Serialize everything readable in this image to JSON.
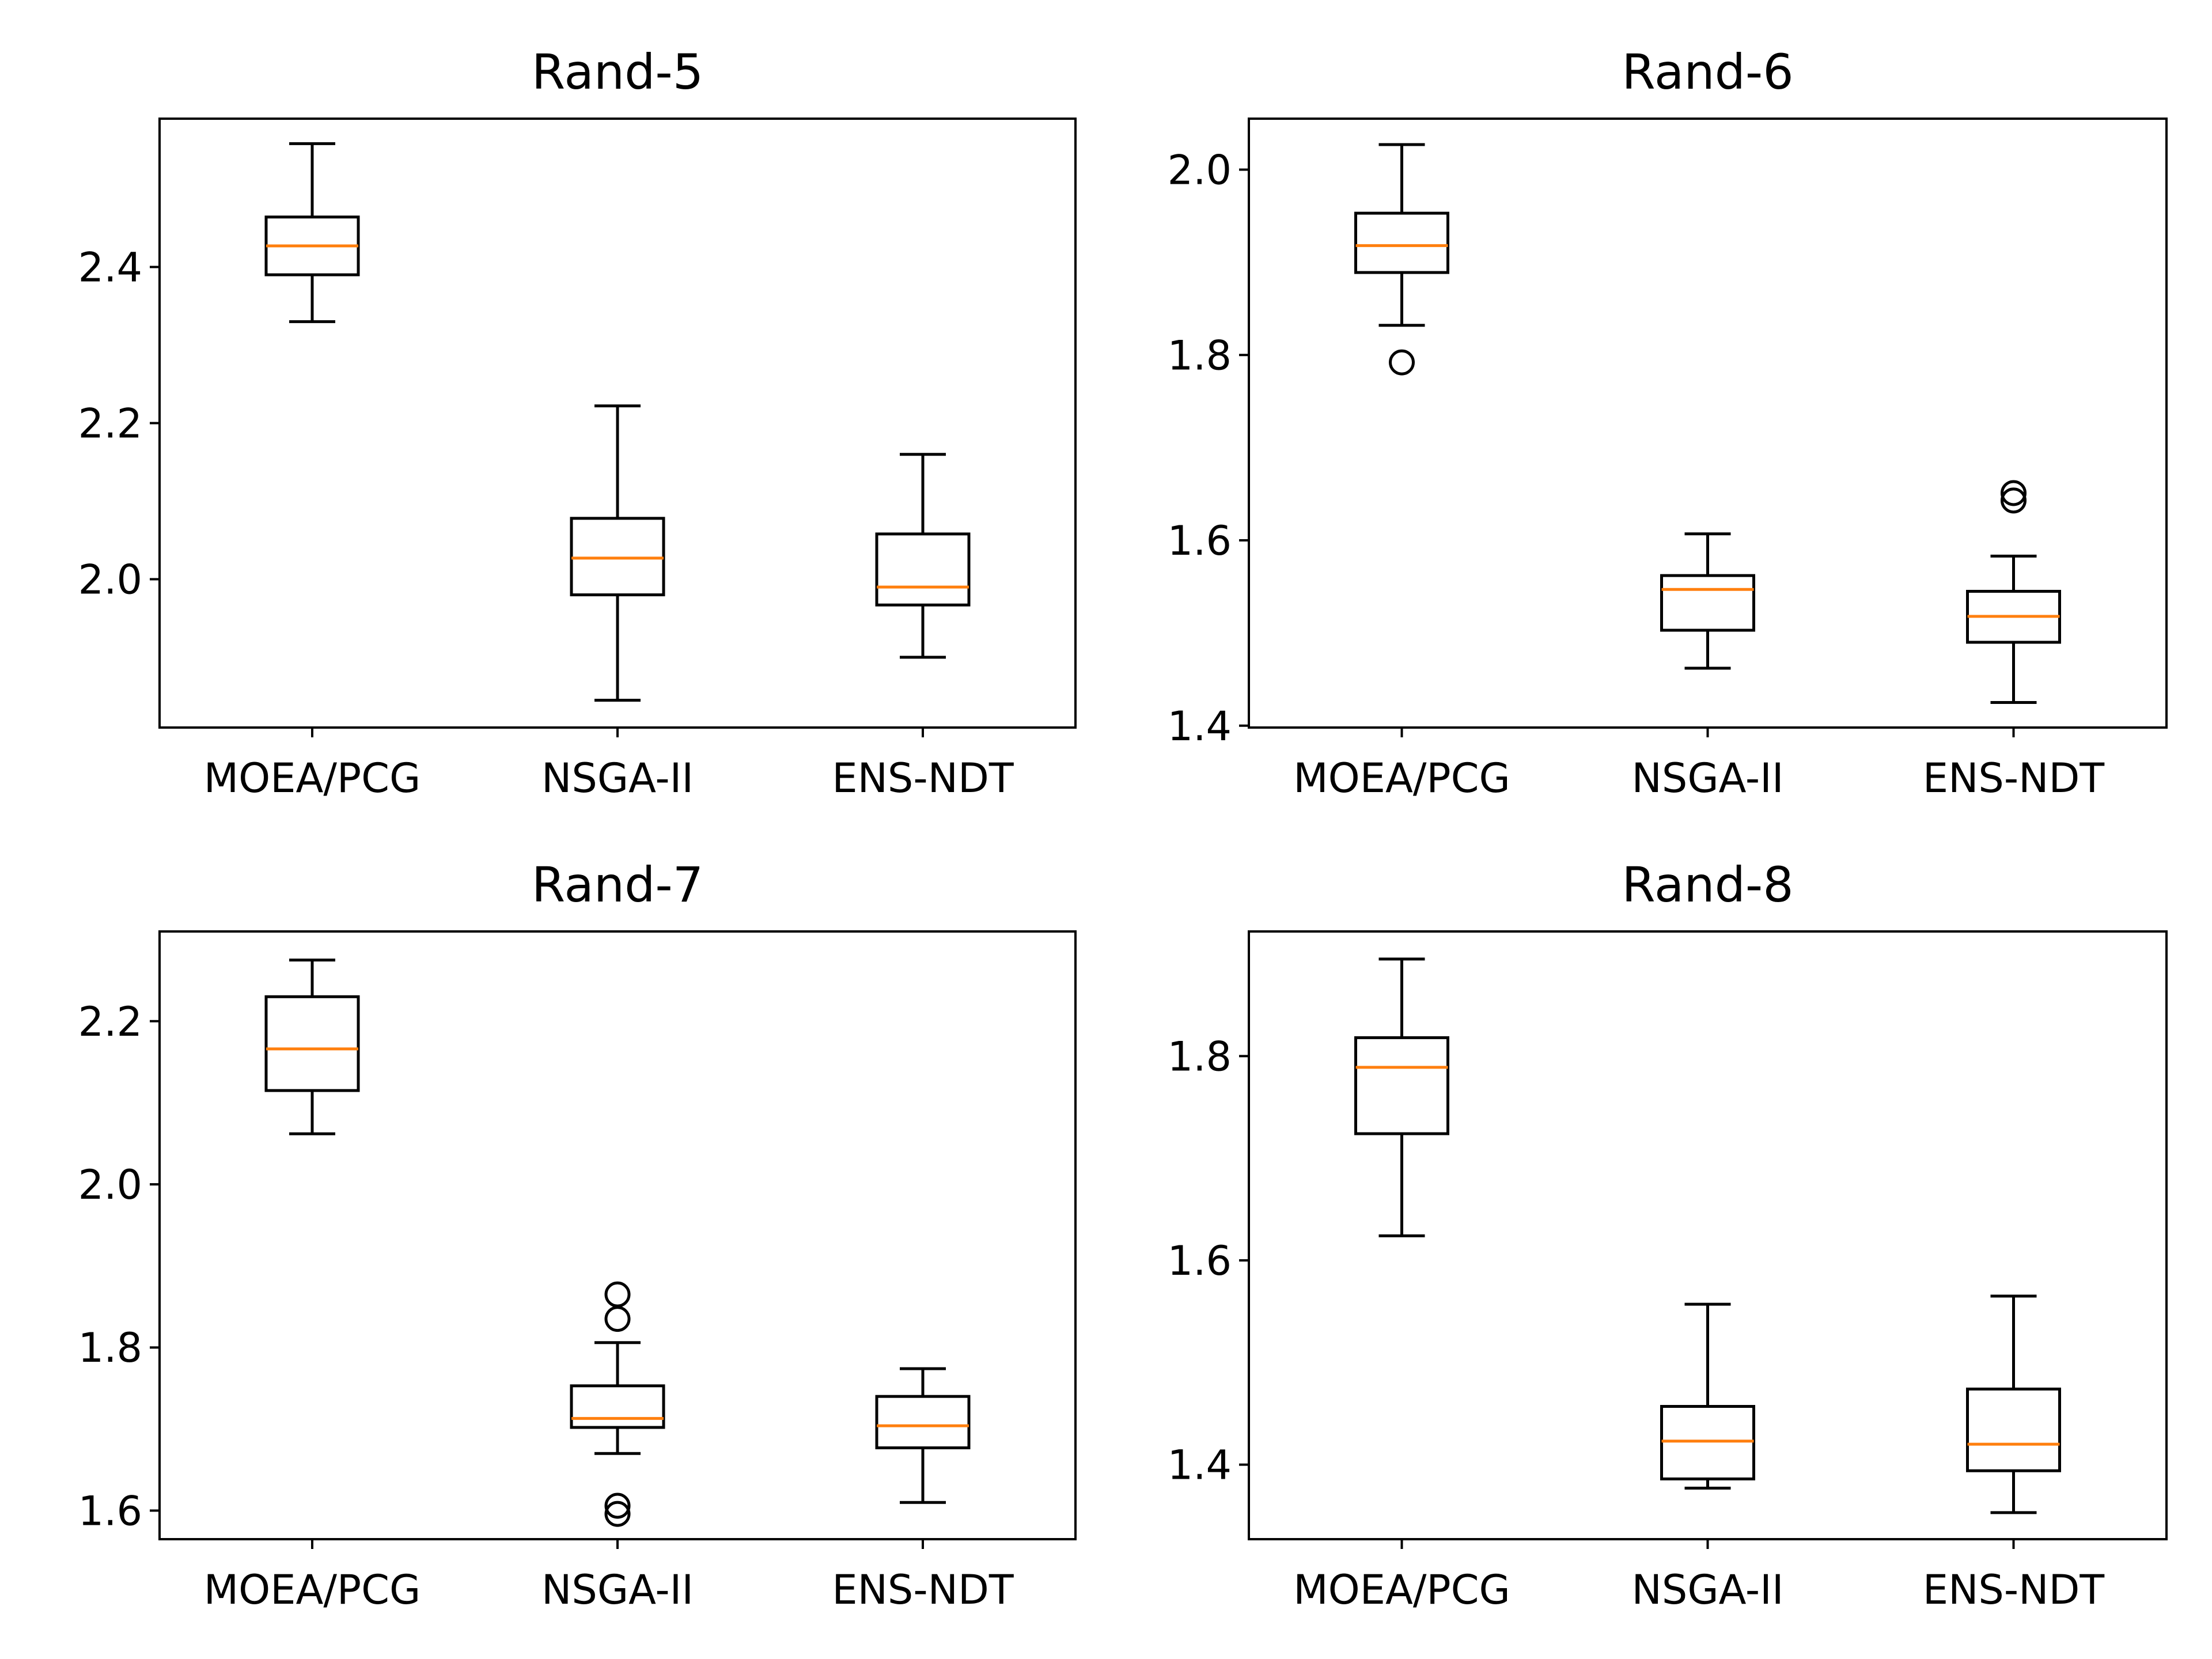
{
  "chart_data": [
    {
      "type": "box",
      "title": "Rand-5",
      "categories": [
        "MOEA/PCG",
        "NSGA-II",
        "ENS-NDT"
      ],
      "ylim": [
        1.81,
        2.59
      ],
      "yticks": [
        2.0,
        2.2,
        2.4
      ],
      "ytick_labels": [
        "2.0",
        "2.2",
        "2.4"
      ],
      "boxes": [
        {
          "whislo": 2.33,
          "q1": 2.39,
          "med": 2.427,
          "q3": 2.464,
          "whishi": 2.558,
          "fliers": []
        },
        {
          "whislo": 1.845,
          "q1": 1.98,
          "med": 2.027,
          "q3": 2.078,
          "whishi": 2.222,
          "fliers": []
        },
        {
          "whislo": 1.9,
          "q1": 1.967,
          "med": 1.99,
          "q3": 2.058,
          "whishi": 2.16,
          "fliers": []
        }
      ]
    },
    {
      "type": "box",
      "title": "Rand-6",
      "categories": [
        "MOEA/PCG",
        "NSGA-II",
        "ENS-NDT"
      ],
      "ylim": [
        1.398,
        2.055
      ],
      "yticks": [
        1.4,
        1.6,
        1.8,
        2.0
      ],
      "ytick_labels": [
        "1.4",
        "1.6",
        "1.8",
        "2.0"
      ],
      "boxes": [
        {
          "whislo": 1.832,
          "q1": 1.889,
          "med": 1.918,
          "q3": 1.953,
          "whishi": 2.027,
          "fliers": [
            1.792
          ]
        },
        {
          "whislo": 1.462,
          "q1": 1.503,
          "med": 1.547,
          "q3": 1.562,
          "whishi": 1.607,
          "fliers": []
        },
        {
          "whislo": 1.425,
          "q1": 1.49,
          "med": 1.518,
          "q3": 1.545,
          "whishi": 1.583,
          "fliers": [
            1.643,
            1.651
          ]
        }
      ]
    },
    {
      "type": "box",
      "title": "Rand-7",
      "categories": [
        "MOEA/PCG",
        "NSGA-II",
        "ENS-NDT"
      ],
      "ylim": [
        1.565,
        2.31
      ],
      "yticks": [
        1.6,
        1.8,
        2.0,
        2.2
      ],
      "ytick_labels": [
        "1.6",
        "1.8",
        "2.0",
        "2.2"
      ],
      "boxes": [
        {
          "whislo": 2.062,
          "q1": 2.115,
          "med": 2.166,
          "q3": 2.23,
          "whishi": 2.275,
          "fliers": []
        },
        {
          "whislo": 1.67,
          "q1": 1.702,
          "med": 1.713,
          "q3": 1.753,
          "whishi": 1.806,
          "fliers": [
            1.596,
            1.606,
            1.835,
            1.865
          ]
        },
        {
          "whislo": 1.61,
          "q1": 1.677,
          "med": 1.704,
          "q3": 1.74,
          "whishi": 1.774,
          "fliers": []
        }
      ]
    },
    {
      "type": "box",
      "title": "Rand-8",
      "categories": [
        "MOEA/PCG",
        "NSGA-II",
        "ENS-NDT"
      ],
      "ylim": [
        1.327,
        1.922
      ],
      "yticks": [
        1.4,
        1.6,
        1.8
      ],
      "ytick_labels": [
        "1.4",
        "1.6",
        "1.8"
      ],
      "boxes": [
        {
          "whislo": 1.624,
          "q1": 1.724,
          "med": 1.789,
          "q3": 1.818,
          "whishi": 1.895,
          "fliers": []
        },
        {
          "whislo": 1.377,
          "q1": 1.386,
          "med": 1.423,
          "q3": 1.457,
          "whishi": 1.557,
          "fliers": []
        },
        {
          "whislo": 1.353,
          "q1": 1.394,
          "med": 1.42,
          "q3": 1.474,
          "whishi": 1.565,
          "fliers": []
        }
      ]
    }
  ],
  "colors": {
    "box": "#000000",
    "median": "#ff7f0e",
    "background": "#ffffff"
  }
}
